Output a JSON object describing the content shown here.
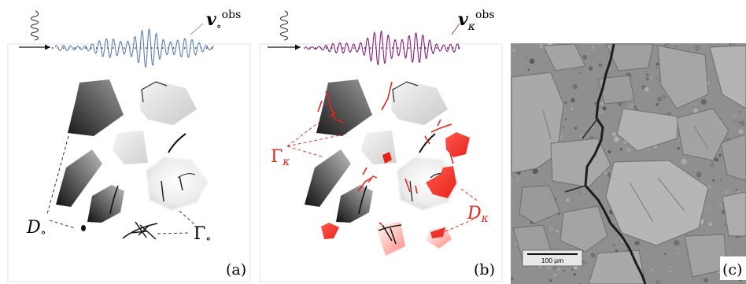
{
  "panels": {
    "a": {
      "tag": "(a)",
      "wave_label": {
        "base": "v",
        "sub": "∘",
        "sup": "obs"
      },
      "label_D": {
        "base": "D",
        "sub": "∘"
      },
      "label_Gamma": {
        "base": "Γ",
        "sub": "∘"
      }
    },
    "b": {
      "tag": "(b)",
      "wave_label": {
        "base": "v",
        "sub": "κ",
        "sup": "obs"
      },
      "label_D": {
        "base": "D",
        "sub": "κ"
      },
      "label_Gamma": {
        "base": "Γ",
        "sub": "κ"
      }
    },
    "c": {
      "tag": "(c)",
      "scale_bar": "100 µm"
    }
  },
  "colors": {
    "wave_a": "#5b7fb5",
    "wave_b": "#8a1a7a",
    "damage": "#e8231c",
    "micrograph_bg": "#8f8f8f"
  }
}
